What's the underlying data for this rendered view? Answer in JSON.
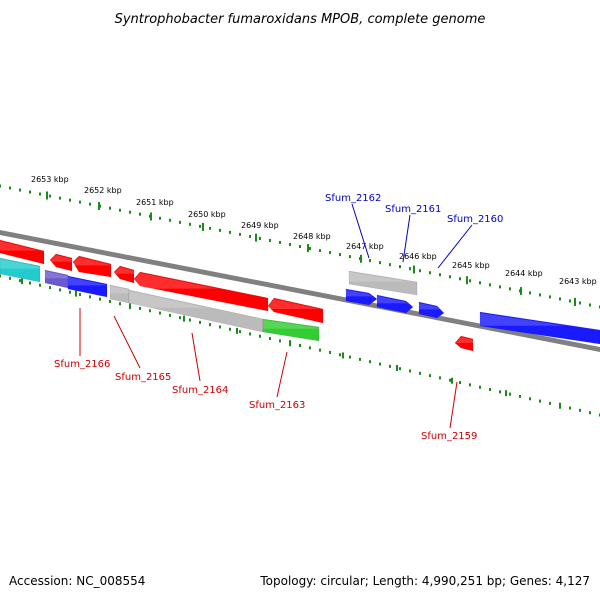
{
  "title": "Syntrophobacter fumaroxidans MPOB, complete genome",
  "footer": {
    "accession": "Accession: NC_008554",
    "topology": "Topology: circular; Length: 4,990,251 bp; Genes: 4,127"
  },
  "colors": {
    "backbone": "#808080",
    "forward_label": "#0000cc",
    "reverse_label": "#cc0000",
    "ruler": "#1a8a1a"
  },
  "scale": {
    "unit": "kbp",
    "ticks": [
      {
        "label": "2653 kbp"
      },
      {
        "label": "2652 kbp"
      },
      {
        "label": "2651 kbp"
      },
      {
        "label": "2650 kbp"
      },
      {
        "label": "2649 kbp"
      },
      {
        "label": "2648 kbp"
      },
      {
        "label": "2647 kbp"
      },
      {
        "label": "2646 kbp"
      },
      {
        "label": "2645 kbp"
      },
      {
        "label": "2644 kbp"
      },
      {
        "label": "2643 kbp"
      }
    ]
  },
  "gene_labels": {
    "forward": [
      "Sfum_2162",
      "Sfum_2161",
      "Sfum_2160"
    ],
    "reverse": [
      "Sfum_2166",
      "Sfum_2165",
      "Sfum_2164",
      "Sfum_2163",
      "Sfum_2159"
    ]
  },
  "features": [
    {
      "color": "#ff0000",
      "shape": "box"
    },
    {
      "color": "#ff0000",
      "shape": "arrow-left"
    },
    {
      "color": "#ff0000",
      "shape": "arrow-left"
    },
    {
      "color": "#ff0000",
      "shape": "arrow-left"
    },
    {
      "color": "#ff0000",
      "shape": "arrow-left"
    },
    {
      "color": "#ff0000",
      "shape": "arrow-left"
    },
    {
      "color": "#ff0000",
      "shape": "arrow-left"
    },
    {
      "color": "#1a1aff",
      "shape": "arrow-right"
    },
    {
      "color": "#1a1aff",
      "shape": "arrow-right"
    },
    {
      "color": "#1a1aff",
      "shape": "arrow-right"
    },
    {
      "color": "#1a1aff",
      "shape": "box"
    },
    {
      "color": "#bbbbbb",
      "shape": "box"
    },
    {
      "color": "#22cccc",
      "shape": "box"
    },
    {
      "color": "#6a5acd",
      "shape": "box"
    },
    {
      "color": "#1a1aff",
      "shape": "box"
    },
    {
      "color": "#bbbbbb",
      "shape": "box"
    },
    {
      "color": "#bbbbbb",
      "shape": "box"
    },
    {
      "color": "#33cc33",
      "shape": "box"
    }
  ]
}
